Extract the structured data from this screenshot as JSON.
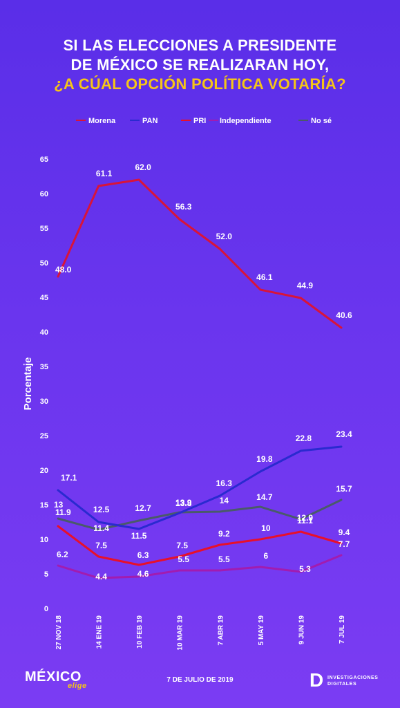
{
  "title": {
    "line1": "SI LAS ELECCIONES A PRESIDENTE",
    "line2": "DE MÉXICO SE REALIZARAN HOY,",
    "line3": "¿A CÚAL OPCIÓN POLÍTICA VOTARÍA?"
  },
  "footer": {
    "logo": "MÉXICO",
    "logo_sub": "elige",
    "date": "7 DE JULIO DE 2019",
    "org_mark": "D",
    "org_line1": "INVESTIGACIONES",
    "org_line2": "DIGITALES"
  },
  "chart_data": {
    "type": "line",
    "ylabel": "Porcentaje",
    "ylim": [
      0,
      65
    ],
    "yticks": [
      0,
      5,
      10,
      15,
      20,
      25,
      30,
      35,
      40,
      45,
      50,
      55,
      60,
      65
    ],
    "legend_position": "top",
    "grid": false,
    "categories": [
      "27 NOV 18",
      "14 ENE 19",
      "10 FEB 19",
      "10 MAR 19",
      "7 ABR 19",
      "5 MAY 19",
      "9 JUN 19",
      "7 JUL 19"
    ],
    "series": [
      {
        "name": "Morena",
        "color": "#d8143a",
        "values": [
          48.0,
          61.1,
          62.0,
          56.3,
          52.0,
          46.1,
          44.9,
          40.6
        ],
        "labels": [
          "48.0",
          "61.1",
          "62.0",
          "56.3",
          "52.0",
          "46.1",
          "44.9",
          "40.6"
        ]
      },
      {
        "name": "PAN",
        "color": "#2a2ad0",
        "values": [
          17.1,
          12.5,
          11.5,
          13.8,
          16.3,
          19.8,
          22.8,
          23.4
        ],
        "labels": [
          "17.1",
          "12.5",
          "11.5",
          "13.8",
          "16.3",
          "19.8",
          "22.8",
          "23.4"
        ]
      },
      {
        "name": "PRI",
        "color": "#e8102a",
        "values": [
          11.9,
          7.5,
          6.3,
          7.5,
          9.2,
          10,
          11.1,
          9.4
        ],
        "labels": [
          "11.9",
          "7.5",
          "6.3",
          "7.5",
          "9.2",
          "10",
          "11.1",
          "9.4"
        ]
      },
      {
        "name": "Independiente",
        "color": "#a21caf",
        "values": [
          6.2,
          4.4,
          4.6,
          5.5,
          5.5,
          6,
          5.3,
          7.7
        ],
        "labels": [
          "6.2",
          "4.4",
          "4.6",
          "5.5",
          "5.5",
          "6",
          "5.3",
          "7.7"
        ]
      },
      {
        "name": "No sé",
        "color": "#4a5a6a",
        "values": [
          13,
          11.4,
          12.7,
          13.9,
          14,
          14.7,
          12.9,
          15.7
        ],
        "labels": [
          "13",
          "11.4",
          "12.7",
          "13.9",
          "14",
          "14.7",
          "12.9",
          "15.7"
        ]
      }
    ]
  }
}
